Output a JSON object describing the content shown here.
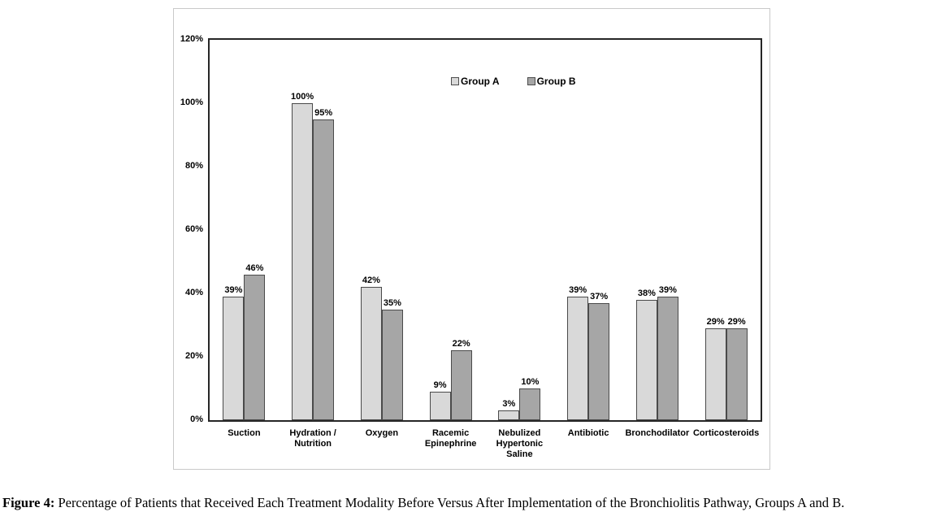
{
  "figure": {
    "caption_prefix": "Figure 4:",
    "caption_text": " Percentage of Patients that Received Each Treatment Modality Before Versus After Implementation of the Bronchiolitis Pathway, Groups A and B."
  },
  "chart_data": {
    "type": "bar",
    "categories": [
      "Suction",
      "Hydration /\nNutrition",
      "Oxygen",
      "Racemic\nEpinephrine",
      "Nebulized\nHypertonic\nSaline",
      "Antibiotic",
      "Bronchodilator",
      "Corticosteroids"
    ],
    "series": [
      {
        "name": "Group A",
        "color": "#d9d9d9",
        "values": [
          39,
          100,
          42,
          9,
          3,
          39,
          38,
          29
        ]
      },
      {
        "name": "Group B",
        "color": "#a6a6a6",
        "values": [
          46,
          95,
          35,
          22,
          10,
          37,
          39,
          29
        ]
      }
    ],
    "value_suffix": "%",
    "ylim": [
      0,
      120
    ],
    "ytick_step": 20,
    "yticks": [
      "120%",
      "100%",
      "80%",
      "60%",
      "40%",
      "20%",
      "0%"
    ],
    "grid": false,
    "legend_position": "inside-top-center",
    "bar_border_color": "#4a4a4a",
    "axis_color": "#262626"
  }
}
